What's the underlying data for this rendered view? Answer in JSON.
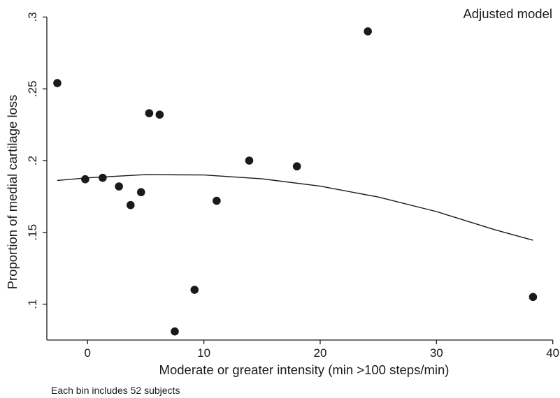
{
  "chart_data": {
    "type": "scatter",
    "title": "",
    "annotation": "Adjusted model",
    "note": "Each bin includes 52 subjects",
    "xlabel": "Moderate or greater intensity (min >100 steps/min)",
    "ylabel": "Proportion of medial cartilage loss",
    "xlim": [
      -3.5,
      40.5
    ],
    "ylim": [
      0.075,
      0.307
    ],
    "xticks": [
      {
        "value": 0,
        "label": "0"
      },
      {
        "value": 10,
        "label": "10"
      },
      {
        "value": 20,
        "label": "20"
      },
      {
        "value": 30,
        "label": "30"
      },
      {
        "value": 40,
        "label": "40"
      }
    ],
    "yticks": [
      {
        "value": 0.1,
        "label": ".1"
      },
      {
        "value": 0.15,
        "label": ".15"
      },
      {
        "value": 0.2,
        "label": ".2"
      },
      {
        "value": 0.25,
        "label": ".25"
      },
      {
        "value": 0.3,
        "label": ".3"
      }
    ],
    "grid": false,
    "legend": "none",
    "points": [
      {
        "x": -2.6,
        "y": 0.254
      },
      {
        "x": -0.2,
        "y": 0.187
      },
      {
        "x": 1.3,
        "y": 0.188
      },
      {
        "x": 2.7,
        "y": 0.182
      },
      {
        "x": 3.7,
        "y": 0.169
      },
      {
        "x": 4.6,
        "y": 0.178
      },
      {
        "x": 5.3,
        "y": 0.233
      },
      {
        "x": 6.2,
        "y": 0.232
      },
      {
        "x": 7.5,
        "y": 0.081
      },
      {
        "x": 9.2,
        "y": 0.11
      },
      {
        "x": 11.1,
        "y": 0.172
      },
      {
        "x": 13.9,
        "y": 0.2
      },
      {
        "x": 18.0,
        "y": 0.196
      },
      {
        "x": 24.1,
        "y": 0.29
      },
      {
        "x": 38.3,
        "y": 0.105
      }
    ],
    "fit_line": {
      "x": [
        -2.6,
        0,
        5,
        10,
        15,
        20,
        25,
        30,
        35,
        38.3
      ],
      "y": [
        0.1862,
        0.188,
        0.1902,
        0.19,
        0.1873,
        0.1822,
        0.1746,
        0.1645,
        0.1519,
        0.1445
      ]
    },
    "colors": {
      "points": "#1a1a1a",
      "line": "#1a1a1a",
      "axes": "#1a1a1a"
    }
  }
}
